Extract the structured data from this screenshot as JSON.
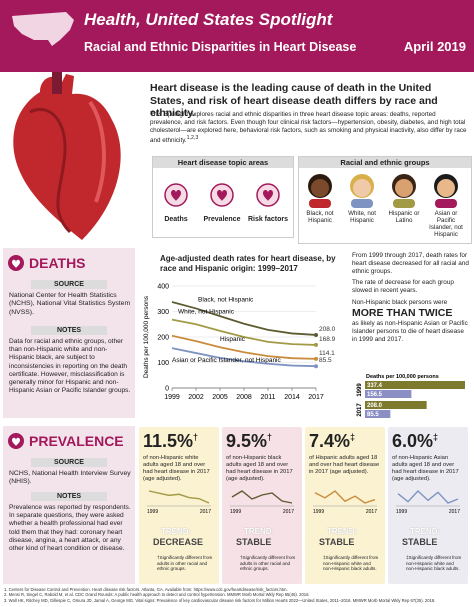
{
  "header": {
    "title": "Health, United States Spotlight",
    "subtitle": "Racial and Ethnic Disparities in Heart Disease",
    "date": "April 2019"
  },
  "intro": {
    "heading": "Heart disease is the leading cause of death in the United States, and risk of heart disease death differs by race and ethnicity.",
    "body": "This Spotlight explores racial and ethnic disparities in three heart disease topic areas: deaths, reported prevalence, and risk factors. Even though four clinical risk factors—hypertension, obesity, diabetes, and high total cholesterol—are explored here, behavioral risk factors, such as smoking and physical inactivity, also differ by race and ethnicity.",
    "body_ref": "1,2,3"
  },
  "topics": {
    "title": "Heart disease topic areas",
    "items": [
      "Deaths",
      "Prevalence",
      "Risk factors"
    ]
  },
  "groups": {
    "title": "Racial and ethnic groups",
    "items": [
      "Black, not Hispanic",
      "White, not Hispanic",
      "Hispanic or Latino",
      "Asian or Pacific Islander, not Hispanic"
    ]
  },
  "deaths": {
    "title": "DEATHS",
    "source_label": "SOURCE",
    "source": "National Center for Health Statistics (NCHS), National Vital Statistics System (NVSS).",
    "notes_label": "NOTES",
    "notes": "Data for racial and ethnic groups, other than non-Hispanic white and non-Hispanic black, are subject to inconsistencies in reporting on the death certificate. However, misclassification is generally minor for Hispanic and non-Hispanic Asian or Pacific Islander groups.",
    "chart": {
      "type": "line",
      "title": "Age-adjusted death rates for heart disease, by race and Hispanic origin: 1999–2017",
      "y_label": "Deaths per 100,000 persons",
      "x": [
        1999,
        2002,
        2005,
        2008,
        2011,
        2014,
        2017
      ],
      "series": [
        {
          "name": "Black, not Hispanic",
          "color": "#5e5b33",
          "values": [
            337.4,
            312,
            282,
            252,
            228,
            214,
            208.0
          ],
          "value_labels": [
            null,
            null,
            null,
            null,
            null,
            null,
            "208.0"
          ]
        },
        {
          "name": "White, not Hispanic",
          "color": "#a39a45",
          "values": [
            268,
            250,
            224,
            200,
            181,
            172,
            168.9
          ],
          "value_labels": [
            null,
            null,
            null,
            null,
            null,
            null,
            "168.9"
          ]
        },
        {
          "name": "Hispanic",
          "color": "#c98b3c",
          "values": [
            205,
            184,
            160,
            140,
            125,
            117,
            114.1
          ],
          "value_labels": [
            null,
            null,
            null,
            null,
            null,
            null,
            "114.1"
          ]
        },
        {
          "name": "Asian or Pacific Islander, not Hispanic",
          "color": "#7f93c2",
          "values": [
            156.5,
            137,
            118,
            105,
            95,
            88,
            85.5
          ],
          "value_labels": [
            null,
            null,
            null,
            null,
            null,
            null,
            "85.5"
          ]
        }
      ],
      "xlim": [
        1999,
        2017
      ],
      "xticks": [
        1999,
        2002,
        2005,
        2008,
        2011,
        2014,
        2017
      ],
      "ylim": [
        0,
        400
      ],
      "yticks": [
        0,
        100,
        200,
        300,
        400
      ]
    },
    "summary": {
      "p1": "From 1999 through 2017, death rates for heart disease decreased for all racial and ethnic groups.",
      "p2": "The rate of decrease for each group slowed in recent years.",
      "p3": "Non-Hispanic black persons were",
      "emphasis": "MORE THAN TWICE",
      "p4": "as likely as non-Hispanic Asian or Pacific Islander persons to die of heart disease in 1999 and 2017."
    },
    "comparison": {
      "type": "bar",
      "label": "Deaths per 100,000 persons",
      "categories": [
        "1999",
        "2017"
      ],
      "series": [
        {
          "color": "#7d7a2e",
          "values": [
            337.4,
            208.0
          ],
          "value_labels": [
            "337.4",
            "208.0"
          ]
        },
        {
          "color": "#8b8fc4",
          "values": [
            156.5,
            85.5
          ],
          "value_labels": [
            "156.5",
            "85.5"
          ]
        }
      ]
    }
  },
  "prevalence": {
    "title": "PREVALENCE",
    "source_label": "SOURCE",
    "source": "NCHS, National Health Interview Survey (NHIS).",
    "notes_label": "NOTES",
    "notes": "Prevalence was reported by respondents. In separate questions, they were asked whether a health professional had ever told them that they had: coronary heart disease, angina, a heart attack, or any other kind of heart condition or disease.",
    "cards": [
      {
        "value": "11.5%",
        "mark": "†",
        "text": "of non-Hispanic white adults aged 18 and over had heart disease in 2017 (age adjusted).",
        "trend_label": "TREND:",
        "trend": "DECREASE",
        "note": "†Significantly different from adults in other racial and ethnic groups.",
        "bg": "#fbf2d2",
        "line_color": "#a39a45",
        "x_labels": [
          "1999",
          "2017"
        ],
        "sparkline": [
          12.6,
          12.4,
          12.2,
          12.3,
          12.0,
          11.9,
          11.5
        ]
      },
      {
        "value": "9.5%",
        "mark": "†",
        "text": "of non-Hispanic black adults aged 18 and over had heart disease in 2017 (age adjusted).",
        "trend_label": "TREND:",
        "trend": "STABLE",
        "note": "†Significantly different from adults in other racial and ethnic groups.",
        "bg": "#f6e1e6",
        "line_color": "#5e5b33",
        "x_labels": [
          "1999",
          "2017"
        ],
        "sparkline": [
          9.8,
          10.1,
          9.7,
          9.9,
          10.0,
          9.6,
          9.5
        ]
      },
      {
        "value": "7.4%",
        "mark": "‡",
        "text": "of Hispanic adults aged 18 and over had heart disease in 2017 (age adjusted).",
        "trend_label": "TREND:",
        "trend": "STABLE",
        "note": "‡Significantly different from non-Hispanic white and non-Hispanic black adults.",
        "bg": "#fbf2d2",
        "line_color": "#c98b3c",
        "x_labels": [
          "1999",
          "2017"
        ],
        "sparkline": [
          7.8,
          7.5,
          7.9,
          7.3,
          7.6,
          7.2,
          7.4
        ]
      },
      {
        "value": "6.0%",
        "mark": "‡",
        "text": "of non-Hispanic Asian adults aged 18 and over had heart disease in 2017 (age adjusted).",
        "trend_label": "TREND:",
        "trend": "STABLE",
        "note": "‡Significantly different from non-Hispanic white and non-Hispanic black adults.",
        "bg": "#ecebf1",
        "line_color": "#7f93c2",
        "x_labels": [
          "1999",
          "2017"
        ],
        "sparkline": [
          6.4,
          5.8,
          6.6,
          5.9,
          6.5,
          5.7,
          6.0
        ]
      }
    ]
  },
  "footnotes": [
    "1. Centers for Disease Control and Prevention. Heart disease risk factors. Atlanta, GA. Available from: https://www.cdc.gov/heartdisease/risk_factors.htm.",
    "2. Mensi R, Siegel C, Rabold M, et al. CDC Grand Rounds: A public health approach to detect and control hypertension. MMWR Morb Mortal Wkly Rep 65(45). 2016.",
    "3. Wall HK, Ritchey MD, Gillespie C, Omura JD, Jamal A, George MG. Vital signs: Prevalence of key cardiovascular disease risk factors for Million Hearts 2022—United States, 2011–2016. MMWR Morb Mortal Wkly Rep 67(35). 2018."
  ]
}
